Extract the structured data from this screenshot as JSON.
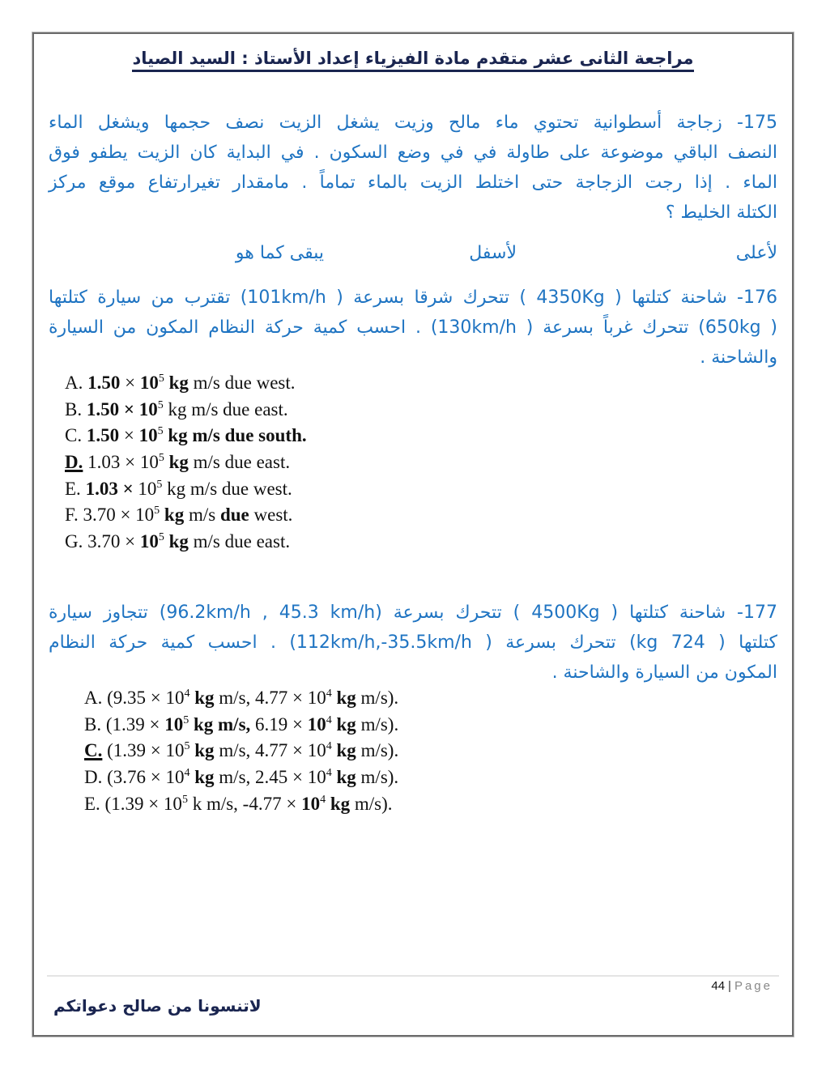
{
  "header": {
    "title": "مراجعة الثانى عشر متقدم  مادة الفيزياء    إعداد الأستاذ : السيد الصياد"
  },
  "q175": {
    "lines": [
      "175- زجاجة أسطوانية تحتوي ماء مالح وزيت يشغل الزيت نصف حجمها ويشغل الماء",
      "النصف الباقي  موضوعة على طاولة في في وضع السكون . في البداية كان الزيت يطفو فوق",
      "الماء . إذا رجت الزجاجة حتى اختلط الزيت بالماء تماماً . مامقدار تغيرارتفاع  موقع مركز",
      "الكتلة الخليط ؟"
    ],
    "choices": [
      "لأعلى",
      "لأسفل",
      "يبقى كما هو"
    ]
  },
  "q176": {
    "lines": [
      "176-  شاحنة كتلتها ( 4350Kg ) تتحرك شرقا بسرعة ( 101km/h) تقترب من سيارة كتلتها",
      "( 650kg) تتحرك غرباً بسرعة ( 130km/h) . احسب كمية حركة النظام المكون من السيارة",
      "والشاحنة ."
    ],
    "options": [
      [
        {
          "t": "A. "
        },
        {
          "t": "1.50",
          "b": 1
        },
        {
          "t": " × "
        },
        {
          "t": "10",
          "b": 1
        },
        {
          "t": "5",
          "sup": 1
        },
        {
          "t": " kg",
          "b": 1
        },
        {
          "t": " m/s due west."
        }
      ],
      [
        {
          "t": "B. "
        },
        {
          "t": "1.50 × 10",
          "b": 1
        },
        {
          "t": "5",
          "sup": 1
        },
        {
          "t": " kg m/s due east."
        }
      ],
      [
        {
          "t": "C. "
        },
        {
          "t": "1.50",
          "b": 1
        },
        {
          "t": " × "
        },
        {
          "t": "10",
          "b": 1
        },
        {
          "t": "5",
          "sup": 1
        },
        {
          "t": " kg",
          "b": 1
        },
        {
          "t": " m/s due south.",
          "b": 1
        }
      ],
      [
        {
          "t": "D.",
          "b": 1,
          "u": 1
        },
        {
          "t": " 1.03 × 10"
        },
        {
          "t": "5",
          "sup": 1
        },
        {
          "t": " kg",
          "b": 1
        },
        {
          "t": " m/s due east."
        }
      ],
      [
        {
          "t": "E. "
        },
        {
          "t": "1.03 × ",
          "b": 1
        },
        {
          "t": "10"
        },
        {
          "t": "5",
          "sup": 1
        },
        {
          "t": " kg m/s due west."
        }
      ],
      [
        {
          "t": "F. 3.70 × 10"
        },
        {
          "t": "5",
          "sup": 1
        },
        {
          "t": " kg",
          "b": 1
        },
        {
          "t": " m/s "
        },
        {
          "t": "due",
          "b": 1
        },
        {
          "t": " west."
        }
      ],
      [
        {
          "t": "G. 3.70 × "
        },
        {
          "t": "10",
          "b": 1
        },
        {
          "t": "5",
          "sup": 1
        },
        {
          "t": " kg",
          "b": 1
        },
        {
          "t": " m/s due east."
        }
      ]
    ]
  },
  "q177": {
    "lines": [
      "177-  شاحنة كتلتها ( 4500Kg ) تتحرك بسرعة (96.2km/h , 45.3 km/h) تتجاوز سيارة",
      "كتلتها ( 724 kg) تتحرك  بسرعة (  112km/h,-35.5km/h) . احسب كمية حركة النظام",
      "المكون من السيارة والشاحنة ."
    ],
    "options": [
      [
        {
          "t": "A. (9.35 × 10"
        },
        {
          "t": "4",
          "sup": 1
        },
        {
          "t": " kg",
          "b": 1
        },
        {
          "t": " m/s, 4.77 × 10"
        },
        {
          "t": "4",
          "sup": 1
        },
        {
          "t": " kg",
          "b": 1
        },
        {
          "t": " m/s)."
        }
      ],
      [
        {
          "t": "B. (1.39 × "
        },
        {
          "t": "10",
          "b": 1
        },
        {
          "t": "5",
          "sup": 1
        },
        {
          "t": " kg m/s,",
          "b": 1
        },
        {
          "t": " 6.19 × "
        },
        {
          "t": "10",
          "b": 1
        },
        {
          "t": "4",
          "sup": 1
        },
        {
          "t": " kg",
          "b": 1
        },
        {
          "t": " m/s)."
        }
      ],
      [
        {
          "t": "C.",
          "b": 1,
          "u": 1
        },
        {
          "t": " (1.39 × 10"
        },
        {
          "t": "5",
          "sup": 1
        },
        {
          "t": " kg",
          "b": 1
        },
        {
          "t": " m/s, 4.77 × 10"
        },
        {
          "t": "4",
          "sup": 1
        },
        {
          "t": " kg",
          "b": 1
        },
        {
          "t": " m/s)."
        }
      ],
      [
        {
          "t": "D. (3.76 × 10"
        },
        {
          "t": "4",
          "sup": 1
        },
        {
          "t": " kg",
          "b": 1
        },
        {
          "t": " m/s, 2.45 × 10"
        },
        {
          "t": "4",
          "sup": 1
        },
        {
          "t": " kg",
          "b": 1
        },
        {
          "t": " m/s)."
        }
      ],
      [
        {
          "t": "E. (1.39 × 10"
        },
        {
          "t": "5",
          "sup": 1
        },
        {
          "t": " k m/s, -4.77 × "
        },
        {
          "t": "10",
          "b": 1
        },
        {
          "t": "4",
          "sup": 1
        },
        {
          "t": " kg",
          "b": 1
        },
        {
          "t": " m/s)."
        }
      ]
    ]
  },
  "footer": {
    "page_number": "44",
    "separator": "|",
    "page_label": "Page",
    "text": "لاتنسونا من صالح دعواتكم"
  }
}
